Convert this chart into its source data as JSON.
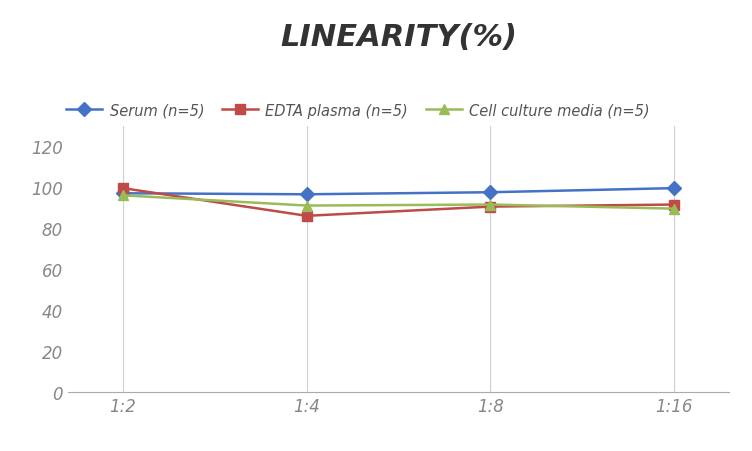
{
  "title": "LINEARITY(%)",
  "x_labels": [
    "1:2",
    "1:4",
    "1:8",
    "1:16"
  ],
  "series": [
    {
      "label": "Serum (n=5)",
      "values": [
        97.0,
        96.5,
        97.5,
        99.5
      ],
      "color": "#4472C4",
      "marker": "D",
      "markersize": 7,
      "linewidth": 1.8
    },
    {
      "label": "EDTA plasma (n=5)",
      "values": [
        99.5,
        86.0,
        90.5,
        91.5
      ],
      "color": "#BE4B48",
      "marker": "s",
      "markersize": 7,
      "linewidth": 1.8
    },
    {
      "label": "Cell culture media (n=5)",
      "values": [
        96.0,
        91.0,
        91.5,
        89.5
      ],
      "color": "#9BBB59",
      "marker": "^",
      "markersize": 7,
      "linewidth": 1.8
    }
  ],
  "ylim": [
    0,
    130
  ],
  "yticks": [
    0,
    20,
    40,
    60,
    80,
    100,
    120
  ],
  "background_color": "#ffffff",
  "grid_color": "#d0d0d0",
  "title_fontsize": 22,
  "legend_fontsize": 10.5,
  "tick_fontsize": 12,
  "tick_color": "#888888"
}
